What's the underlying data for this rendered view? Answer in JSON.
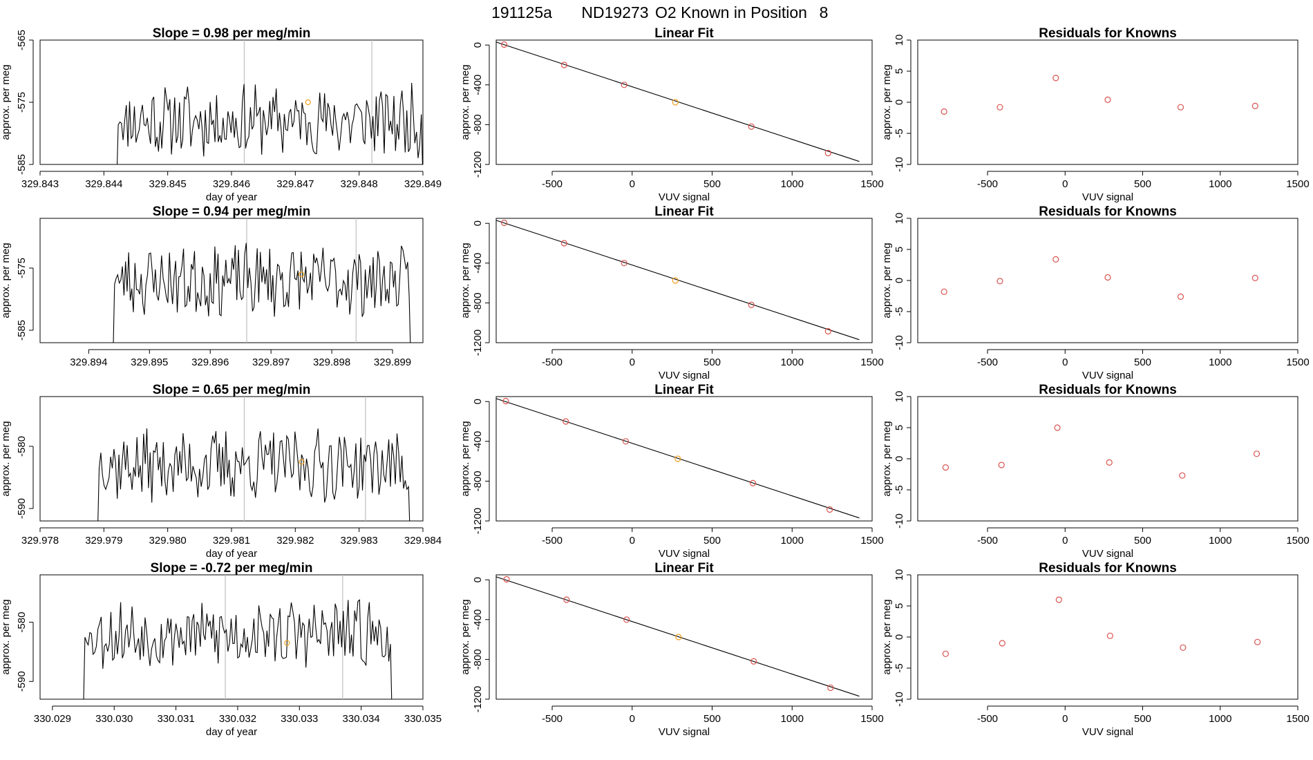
{
  "figure_title": {
    "run": "191125a",
    "tank": "ND19273",
    "label": "O2 Known in Position",
    "position": "8"
  },
  "colors": {
    "line": "#000000",
    "vline": "#bfbfbf",
    "known_point": "#d9534f",
    "sample_point": "#f0a020"
  },
  "chart_data": [
    {
      "row": 1,
      "timeseries": {
        "type": "line",
        "title": "Slope =  0.98  per meg/min",
        "xlabel": "day of year",
        "ylabel": "approx. per meg",
        "xlim": [
          329.843,
          329.849
        ],
        "ylim": [
          -585,
          -565
        ],
        "xticks": [
          "329.843",
          "329.844",
          "329.845",
          "329.846",
          "329.847",
          "329.848",
          "329.849"
        ],
        "yticks": [
          "-565",
          "-575",
          "-585"
        ],
        "yticks_values": [
          -565,
          -575,
          -585
        ],
        "data_start": 329.8442,
        "data_end": 329.849,
        "base": -578,
        "amplitude": 5,
        "seed": 11,
        "vlines": [
          329.8462,
          329.8482
        ],
        "marker": {
          "x": 329.8472,
          "y": -575
        }
      },
      "fit": {
        "type": "scatter",
        "title": "Linear Fit",
        "xlabel": "VUV signal",
        "ylabel": "approx. per meg",
        "xlim": [
          -850,
          1500
        ],
        "ylim": [
          -1200,
          50
        ],
        "xticks": [
          "-500",
          "0",
          "500",
          "1000",
          "1500"
        ],
        "xticks_values": [
          -500,
          0,
          500,
          1000,
          1500
        ],
        "yticks": [
          "0",
          "-400",
          "-800",
          "-1200"
        ],
        "yticks_values": [
          0,
          -400,
          -800,
          -1200
        ],
        "line": {
          "x": [
            -850,
            1420
          ],
          "y": [
            30,
            -1170
          ]
        },
        "points": [
          {
            "x": -800,
            "y": 5,
            "kind": "known"
          },
          {
            "x": -425,
            "y": -200,
            "kind": "known"
          },
          {
            "x": -50,
            "y": -400,
            "kind": "known"
          },
          {
            "x": 270,
            "y": -575,
            "kind": "sample"
          },
          {
            "x": 745,
            "y": -820,
            "kind": "known"
          },
          {
            "x": 1225,
            "y": -1085,
            "kind": "known"
          }
        ]
      },
      "residuals": {
        "type": "scatter",
        "title": "Residuals for Knowns",
        "xlabel": "VUV signal",
        "ylabel": "approx. per meg",
        "xlim": [
          -950,
          1500
        ],
        "ylim": [
          -10,
          10
        ],
        "xticks": [
          "-500",
          "0",
          "500",
          "1000",
          "1500"
        ],
        "xticks_values": [
          -500,
          0,
          500,
          1000,
          1500
        ],
        "yticks": [
          "10",
          "5",
          "0",
          "-5",
          "-10"
        ],
        "yticks_values": [
          10,
          5,
          0,
          -5,
          -10
        ],
        "points": [
          {
            "x": -780,
            "y": -1.5
          },
          {
            "x": -420,
            "y": -0.8
          },
          {
            "x": -60,
            "y": 3.9
          },
          {
            "x": 275,
            "y": 0.4
          },
          {
            "x": 745,
            "y": -0.8
          },
          {
            "x": 1225,
            "y": -0.6
          }
        ]
      }
    },
    {
      "row": 2,
      "timeseries": {
        "type": "line",
        "title": "Slope =  0.94  per meg/min",
        "xlabel": "",
        "ylabel": "approx. per meg",
        "xlim": [
          329.8932,
          329.8995
        ],
        "ylim": [
          -587,
          -567
        ],
        "xticks": [
          "329.894",
          "329.895",
          "329.896",
          "329.897",
          "329.898",
          "329.899"
        ],
        "xticks_values": [
          329.894,
          329.895,
          329.896,
          329.897,
          329.898,
          329.899
        ],
        "yticks": [
          "-575",
          "-585"
        ],
        "yticks_values": [
          -575,
          -585
        ],
        "data_start": 329.8944,
        "data_end": 329.8993,
        "base": -577,
        "amplitude": 5,
        "seed": 23,
        "vlines": [
          329.8966,
          329.8984
        ],
        "marker": {
          "x": 329.8975,
          "y": -576
        }
      },
      "fit": {
        "type": "scatter",
        "title": "Linear Fit",
        "xlabel": "VUV signal",
        "ylabel": "approx. per meg",
        "xlim": [
          -850,
          1500
        ],
        "ylim": [
          -1200,
          50
        ],
        "xticks": [
          "-500",
          "0",
          "500",
          "1000",
          "1500"
        ],
        "xticks_values": [
          -500,
          0,
          500,
          1000,
          1500
        ],
        "yticks": [
          "0",
          "-400",
          "-800",
          "-1200"
        ],
        "yticks_values": [
          0,
          -400,
          -800,
          -1200
        ],
        "line": {
          "x": [
            -850,
            1420
          ],
          "y": [
            30,
            -1170
          ]
        },
        "points": [
          {
            "x": -800,
            "y": 5,
            "kind": "known"
          },
          {
            "x": -425,
            "y": -200,
            "kind": "known"
          },
          {
            "x": -50,
            "y": -400,
            "kind": "known"
          },
          {
            "x": 270,
            "y": -575,
            "kind": "sample"
          },
          {
            "x": 745,
            "y": -820,
            "kind": "known"
          },
          {
            "x": 1225,
            "y": -1085,
            "kind": "known"
          }
        ]
      },
      "residuals": {
        "type": "scatter",
        "title": "Residuals for Knowns",
        "xlabel": "VUV signal",
        "ylabel": "approx. per meg",
        "xlim": [
          -950,
          1500
        ],
        "ylim": [
          -10,
          10
        ],
        "xticks": [
          "-500",
          "0",
          "500",
          "1000",
          "1500"
        ],
        "xticks_values": [
          -500,
          0,
          500,
          1000,
          1500
        ],
        "yticks": [
          "10",
          "5",
          "0",
          "-5",
          "-10"
        ],
        "yticks_values": [
          10,
          5,
          0,
          -5,
          -10
        ],
        "points": [
          {
            "x": -780,
            "y": -1.8
          },
          {
            "x": -420,
            "y": -0.1
          },
          {
            "x": -60,
            "y": 3.4
          },
          {
            "x": 275,
            "y": 0.5
          },
          {
            "x": 745,
            "y": -2.6
          },
          {
            "x": 1225,
            "y": 0.4
          }
        ]
      }
    },
    {
      "row": 3,
      "timeseries": {
        "type": "line",
        "title": "Slope =  0.65  per meg/min",
        "xlabel": "day of year",
        "ylabel": "approx. per meg",
        "xlim": [
          329.978,
          329.984
        ],
        "ylim": [
          -592,
          -572
        ],
        "xticks": [
          "329.978",
          "329.979",
          "329.980",
          "329.981",
          "329.982",
          "329.983",
          "329.984"
        ],
        "xticks_values": [
          329.978,
          329.979,
          329.98,
          329.981,
          329.982,
          329.983,
          329.984
        ],
        "yticks": [
          "-580",
          "-590"
        ],
        "yticks_values": [
          -580,
          -590
        ],
        "data_start": 329.9789,
        "data_end": 329.9838,
        "base": -583,
        "amplitude": 5,
        "seed": 37,
        "vlines": [
          329.9812,
          329.9831
        ],
        "marker": {
          "x": 329.9821,
          "y": -582.5
        }
      },
      "fit": {
        "type": "scatter",
        "title": "Linear Fit",
        "xlabel": "VUV signal",
        "ylabel": "approx. per meg",
        "xlim": [
          -850,
          1500
        ],
        "ylim": [
          -1200,
          50
        ],
        "xticks": [
          "-500",
          "0",
          "500",
          "1000",
          "1500"
        ],
        "xticks_values": [
          -500,
          0,
          500,
          1000,
          1500
        ],
        "yticks": [
          "0",
          "-400",
          "-800",
          "-1200"
        ],
        "yticks_values": [
          0,
          -400,
          -800,
          -1200
        ],
        "line": {
          "x": [
            -850,
            1420
          ],
          "y": [
            30,
            -1170
          ]
        },
        "points": [
          {
            "x": -790,
            "y": 5,
            "kind": "known"
          },
          {
            "x": -415,
            "y": -200,
            "kind": "known"
          },
          {
            "x": -40,
            "y": -400,
            "kind": "known"
          },
          {
            "x": 285,
            "y": -575,
            "kind": "sample"
          },
          {
            "x": 755,
            "y": -820,
            "kind": "known"
          },
          {
            "x": 1235,
            "y": -1085,
            "kind": "known"
          }
        ]
      },
      "residuals": {
        "type": "scatter",
        "title": "Residuals for Knowns",
        "xlabel": "VUV signal",
        "ylabel": "approx. per meg",
        "xlim": [
          -950,
          1500
        ],
        "ylim": [
          -10,
          10
        ],
        "xticks": [
          "-500",
          "0",
          "500",
          "1000",
          "1500"
        ],
        "xticks_values": [
          -500,
          0,
          500,
          1000,
          1500
        ],
        "yticks": [
          "10",
          "5",
          "0",
          "-5",
          "-10"
        ],
        "yticks_values": [
          10,
          5,
          0,
          -5,
          -10
        ],
        "points": [
          {
            "x": -770,
            "y": -1.4
          },
          {
            "x": -410,
            "y": -1.0
          },
          {
            "x": -50,
            "y": 5.0
          },
          {
            "x": 285,
            "y": -0.6
          },
          {
            "x": 755,
            "y": -2.7
          },
          {
            "x": 1235,
            "y": 0.8
          }
        ]
      }
    },
    {
      "row": 4,
      "timeseries": {
        "type": "line",
        "title": "Slope =  -0.72  per meg/min",
        "xlabel": "day of year",
        "ylabel": "approx. per meg",
        "xlim": [
          330.0288,
          330.035
        ],
        "ylim": [
          -593,
          -572
        ],
        "xticks": [
          "330.029",
          "330.030",
          "330.031",
          "330.032",
          "330.033",
          "330.034",
          "330.035"
        ],
        "xticks_values": [
          330.029,
          330.03,
          330.031,
          330.032,
          330.033,
          330.034,
          330.035
        ],
        "yticks": [
          "-580",
          "-590"
        ],
        "yticks_values": [
          -580,
          -590
        ],
        "data_start": 330.0295,
        "data_end": 330.0345,
        "base": -582,
        "amplitude": 5,
        "seed": 53,
        "vlines": [
          330.0318,
          330.0337
        ],
        "marker": {
          "x": 330.0328,
          "y": -583.5
        }
      },
      "fit": {
        "type": "scatter",
        "title": "Linear Fit",
        "xlabel": "VUV signal",
        "ylabel": "approx. per meg",
        "xlim": [
          -850,
          1500
        ],
        "ylim": [
          -1200,
          50
        ],
        "xticks": [
          "-500",
          "0",
          "500",
          "1000",
          "1500"
        ],
        "xticks_values": [
          -500,
          0,
          500,
          1000,
          1500
        ],
        "yticks": [
          "0",
          "-400",
          "-800",
          "-1200"
        ],
        "yticks_values": [
          0,
          -400,
          -800,
          -1200
        ],
        "line": {
          "x": [
            -850,
            1420
          ],
          "y": [
            30,
            -1170
          ]
        },
        "points": [
          {
            "x": -785,
            "y": 5,
            "kind": "known"
          },
          {
            "x": -410,
            "y": -200,
            "kind": "known"
          },
          {
            "x": -35,
            "y": -400,
            "kind": "known"
          },
          {
            "x": 290,
            "y": -575,
            "kind": "sample"
          },
          {
            "x": 760,
            "y": -820,
            "kind": "known"
          },
          {
            "x": 1240,
            "y": -1085,
            "kind": "known"
          }
        ]
      },
      "residuals": {
        "type": "scatter",
        "title": "Residuals for Knowns",
        "xlabel": "VUV signal",
        "ylabel": "approx. per meg",
        "xlim": [
          -950,
          1500
        ],
        "ylim": [
          -10,
          10
        ],
        "xticks": [
          "-500",
          "0",
          "500",
          "1000",
          "1500"
        ],
        "xticks_values": [
          -500,
          0,
          500,
          1000,
          1500
        ],
        "yticks": [
          "10",
          "5",
          "0",
          "-5",
          "-10"
        ],
        "yticks_values": [
          10,
          5,
          0,
          -5,
          -10
        ],
        "points": [
          {
            "x": -770,
            "y": -2.7
          },
          {
            "x": -405,
            "y": -1.0
          },
          {
            "x": -40,
            "y": 6.0
          },
          {
            "x": 290,
            "y": 0.2
          },
          {
            "x": 760,
            "y": -1.7
          },
          {
            "x": 1240,
            "y": -0.8
          }
        ]
      }
    }
  ]
}
